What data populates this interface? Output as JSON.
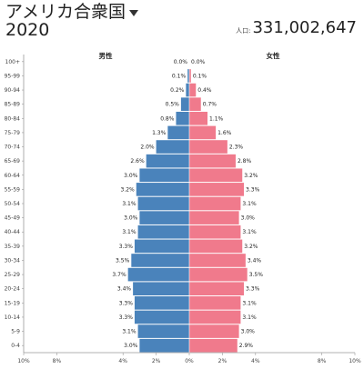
{
  "header": {
    "title": "アメリカ合衆国",
    "year": "2020",
    "population_label": "人口:",
    "population_value": "331,002,647"
  },
  "colors": {
    "male": "#4a83bb",
    "female": "#f07a8c"
  },
  "icons": {
    "title_dropdown": "caret-down-icon"
  },
  "chart_data": {
    "type": "bar",
    "orientation": "horizontal",
    "subtype": "population-pyramid",
    "categories": [
      "100+",
      "95-99",
      "90-94",
      "85-89",
      "80-84",
      "75-79",
      "70-74",
      "65-69",
      "60-64",
      "55-59",
      "50-54",
      "45-49",
      "40-44",
      "35-39",
      "30-34",
      "25-29",
      "20-24",
      "15-19",
      "10-14",
      "5-9",
      "0-4"
    ],
    "series": [
      {
        "name": "男性",
        "values": [
          0.0,
          0.1,
          0.2,
          0.5,
          0.8,
          1.3,
          2.0,
          2.6,
          3.0,
          3.2,
          3.1,
          3.0,
          3.1,
          3.3,
          3.5,
          3.7,
          3.4,
          3.3,
          3.3,
          3.1,
          3.0
        ]
      },
      {
        "name": "女性",
        "values": [
          0.0,
          0.1,
          0.4,
          0.7,
          1.1,
          1.6,
          2.3,
          2.8,
          3.2,
          3.3,
          3.1,
          3.0,
          3.1,
          3.2,
          3.4,
          3.5,
          3.3,
          3.1,
          3.1,
          3.0,
          2.9
        ]
      }
    ],
    "value_labels": {
      "male": [
        "0.0%",
        "0.1%",
        "0.2%",
        "0.5%",
        "0.8%",
        "1.3%",
        "2.0%",
        "2.6%",
        "3.0%",
        "3.2%",
        "3.1%",
        "3.0%",
        "3.1%",
        "3.3%",
        "3.5%",
        "3.7%",
        "3.4%",
        "3.3%",
        "3.3%",
        "3.1%",
        "3.0%"
      ],
      "female": [
        "0.0%",
        "0.1%",
        "0.4%",
        "0.7%",
        "1.1%",
        "1.6%",
        "2.3%",
        "2.8%",
        "3.2%",
        "3.3%",
        "3.1%",
        "3.0%",
        "3.1%",
        "3.2%",
        "3.4%",
        "3.5%",
        "3.3%",
        "3.1%",
        "3.1%",
        "3.0%",
        "2.9%"
      ]
    },
    "x_ticks": [
      "10%",
      "8%",
      "4%",
      "2%",
      "0%",
      "2%",
      "4%",
      "8%",
      "10%"
    ],
    "x_tick_values": [
      -10,
      -8,
      -4,
      -2,
      0,
      2,
      4,
      8,
      10
    ],
    "xlim": [
      -10,
      10
    ],
    "unit": "%"
  }
}
